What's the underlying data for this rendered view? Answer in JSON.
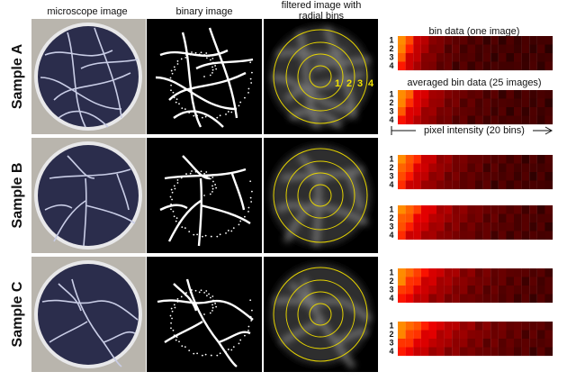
{
  "column_headers": [
    "microscope image",
    "binary image"
  ],
  "filtered_header": [
    "filtered image with",
    "radial bins"
  ],
  "bin_data_label": "bin data (one image)",
  "averaged_label": "averaged bin data (25 images)",
  "axis_label": "pixel intensity (20 bins)",
  "row_labels": [
    "Sample A",
    "Sample B",
    "Sample C"
  ],
  "bin_numbers": [
    "1",
    "2",
    "3",
    "4"
  ]
}
